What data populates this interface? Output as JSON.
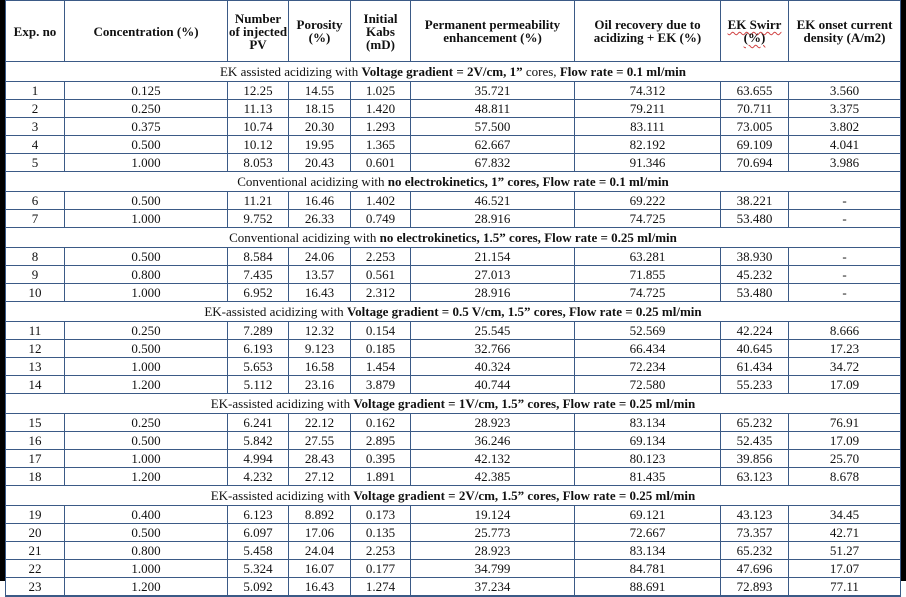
{
  "table": {
    "headers": [
      "Exp. no",
      "Concentration (%)",
      "Number of injected PV",
      "Porosity (%)",
      "Initial Kabs (mD)",
      "Permanent permeability enhancement (%)",
      "Oil recovery due to acidizing + EK (%)",
      "EK Swirr (%)",
      "EK onset current density (A/m2)"
    ],
    "sections": [
      {
        "prefix": "EK assisted acidizing with ",
        "bold1": "Voltage gradient = 2V/cm, 1” ",
        "mid": "cores, ",
        "bold2": "Flow rate = 0.1 ml/min",
        "rows": [
          [
            "1",
            "0.125",
            "12.25",
            "14.55",
            "1.025",
            "35.721",
            "74.312",
            "63.655",
            "3.560"
          ],
          [
            "2",
            "0.250",
            "11.13",
            "18.15",
            "1.420",
            "48.811",
            "79.211",
            "70.711",
            "3.375"
          ],
          [
            "3",
            "0.375",
            "10.74",
            "20.30",
            "1.293",
            "57.500",
            "83.111",
            "73.005",
            "3.802"
          ],
          [
            "4",
            "0.500",
            "10.12",
            "19.95",
            "1.365",
            "62.667",
            "82.192",
            "69.109",
            "4.041"
          ],
          [
            "5",
            "1.000",
            "8.053",
            "20.43",
            "0.601",
            "67.832",
            "91.346",
            "70.694",
            "3.986"
          ]
        ]
      },
      {
        "prefix": "Conventional acidizing with ",
        "bold1": "no electrokinetics, 1” cores, ",
        "mid": "",
        "bold2": "Flow rate = 0.1 ml/min",
        "rows": [
          [
            "6",
            "0.500",
            "11.21",
            "16.46",
            "1.402",
            "46.521",
            "69.222",
            "38.221",
            "-"
          ],
          [
            "7",
            "1.000",
            "9.752",
            "26.33",
            "0.749",
            "28.916",
            "74.725",
            "53.480",
            "-"
          ]
        ]
      },
      {
        "prefix": "Conventional acidizing with ",
        "bold1": "no electrokinetics, 1.5” cores, ",
        "mid": "",
        "bold2": "Flow rate = 0.25 ml/min",
        "rows": [
          [
            "8",
            "0.500",
            "8.584",
            "24.06",
            "2.253",
            "21.154",
            "63.281",
            "38.930",
            "-"
          ],
          [
            "9",
            "0.800",
            "7.435",
            "13.57",
            "0.561",
            "27.013",
            "71.855",
            "45.232",
            "-"
          ],
          [
            "10",
            "1.000",
            "6.952",
            "16.43",
            "2.312",
            "28.916",
            "74.725",
            "53.480",
            "-"
          ]
        ]
      },
      {
        "prefix": "EK-assisted acidizing with ",
        "bold1": "Voltage gradient = 0.5 V/cm, 1.5” cores, ",
        "mid": "",
        "bold2": "Flow rate = 0.25 ml/min",
        "rows": [
          [
            "11",
            "0.250",
            "7.289",
            "12.32",
            "0.154",
            "25.545",
            "52.569",
            "42.224",
            "8.666"
          ],
          [
            "12",
            "0.500",
            "6.193",
            "9.123",
            "0.185",
            "32.766",
            "66.434",
            "40.645",
            "17.23"
          ],
          [
            "13",
            "1.000",
            "5.653",
            "16.58",
            "1.454",
            "40.324",
            "72.234",
            "61.434",
            "34.72"
          ],
          [
            "14",
            "1.200",
            "5.112",
            "23.16",
            "3.879",
            "40.744",
            "72.580",
            "55.233",
            "17.09"
          ]
        ]
      },
      {
        "prefix": "EK-assisted acidizing with ",
        "bold1": "Voltage gradient = 1V/cm, 1.5” cores, ",
        "mid": "",
        "bold2": "Flow rate = 0.25 ml/min",
        "rows": [
          [
            "15",
            "0.250",
            "6.241",
            "22.12",
            "0.162",
            "28.923",
            "83.134",
            "65.232",
            "76.91"
          ],
          [
            "16",
            "0.500",
            "5.842",
            "27.55",
            "2.895",
            "36.246",
            "69.134",
            "52.435",
            "17.09"
          ],
          [
            "17",
            "1.000",
            "4.994",
            "28.43",
            "0.395",
            "42.132",
            "80.123",
            "39.856",
            "25.70"
          ],
          [
            "18",
            "1.200",
            "4.232",
            "27.12",
            "1.891",
            "42.385",
            "81.435",
            "63.123",
            "8.678"
          ]
        ]
      },
      {
        "prefix": "EK-assisted acidizing with ",
        "bold1": "Voltage gradient = 2V/cm, 1.5” cores, ",
        "mid": "",
        "bold2": "Flow rate = 0.25 ml/min",
        "rows": [
          [
            "19",
            "0.400",
            "6.123",
            "8.892",
            "0.173",
            "19.124",
            "69.121",
            "43.123",
            "34.45"
          ],
          [
            "20",
            "0.500",
            "6.097",
            "17.06",
            "0.135",
            "25.773",
            "72.667",
            "73.357",
            "42.71"
          ],
          [
            "21",
            "0.800",
            "5.458",
            "24.04",
            "2.253",
            "28.923",
            "83.134",
            "65.232",
            "51.27"
          ],
          [
            "22",
            "1.000",
            "5.324",
            "16.07",
            "0.177",
            "34.799",
            "84.781",
            "47.696",
            "17.07"
          ],
          [
            "23",
            "1.200",
            "5.092",
            "16.43",
            "1.274",
            "37.234",
            "88.691",
            "72.893",
            "77.11"
          ]
        ]
      }
    ]
  }
}
